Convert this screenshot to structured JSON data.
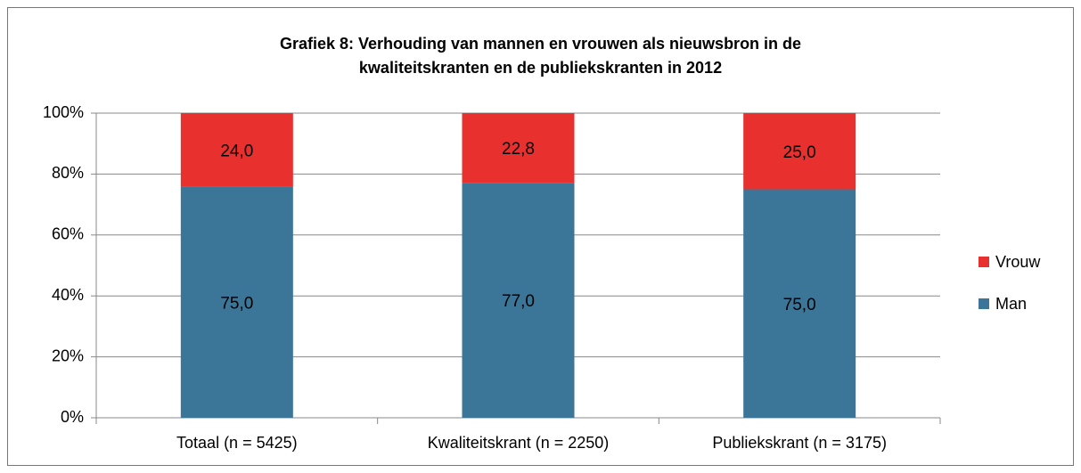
{
  "chart_data": {
    "type": "bar",
    "stacking": "percent",
    "title": "Grafiek 8: Verhouding van mannen en vrouwen als nieuwsbron in de kwaliteitskranten en de publiekskranten in 2012",
    "categories": [
      "Totaal (n = 5425)",
      "Kwaliteitskrant (n = 2250)",
      "Publiekskrant (n = 3175)"
    ],
    "series": [
      {
        "name": "Man",
        "color": "#3b7597",
        "values": [
          75.0,
          77.0,
          75.0
        ],
        "value_labels": [
          "75,0",
          "77,0",
          "75,0"
        ]
      },
      {
        "name": "Vrouw",
        "color": "#e8312f",
        "values": [
          24.0,
          22.8,
          25.0
        ],
        "value_labels": [
          "24,0",
          "22,8",
          "25,0"
        ]
      }
    ],
    "ylim": [
      0,
      100
    ],
    "yticks": [
      {
        "value": 0,
        "label": "0%"
      },
      {
        "value": 20,
        "label": "20%"
      },
      {
        "value": 40,
        "label": "40%"
      },
      {
        "value": 60,
        "label": "60%"
      },
      {
        "value": 80,
        "label": "80%"
      },
      {
        "value": 100,
        "label": "100%"
      }
    ],
    "grid": true,
    "legend": "right"
  }
}
